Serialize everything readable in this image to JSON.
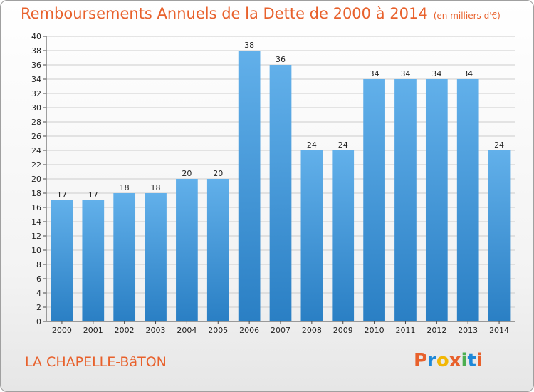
{
  "title": "Remboursements Annuels de la Dette de 2000 à 2014",
  "unit": "(en milliers d'€)",
  "commune": "LA CHAPELLE-BâTON",
  "logo": {
    "letters": [
      "P",
      "r",
      "o",
      "x",
      "i",
      "t",
      "i"
    ],
    "colors": [
      "#e8612c",
      "#1e88d8",
      "#f2b705",
      "#e8612c",
      "#4caf50",
      "#1e88d8",
      "#e8612c"
    ]
  },
  "colors": {
    "bar_light": "#62b0ea",
    "bar_dark": "#2a7fc4",
    "grid": "#cccccc",
    "title": "#e8612c"
  },
  "chart_data": {
    "type": "bar",
    "title": "Remboursements Annuels de la Dette de 2000 à 2014",
    "xlabel": "",
    "ylabel": "",
    "categories": [
      "2000",
      "2001",
      "2002",
      "2003",
      "2004",
      "2005",
      "2006",
      "2007",
      "2008",
      "2009",
      "2010",
      "2011",
      "2012",
      "2013",
      "2014"
    ],
    "values": [
      17,
      17,
      18,
      18,
      20,
      20,
      38,
      36,
      24,
      24,
      34,
      34,
      34,
      34,
      24
    ],
    "ylim": [
      0,
      40
    ],
    "yticks": [
      0,
      2,
      4,
      6,
      8,
      10,
      12,
      14,
      16,
      18,
      20,
      22,
      24,
      26,
      28,
      30,
      32,
      34,
      36,
      38,
      40
    ],
    "grid": true
  }
}
